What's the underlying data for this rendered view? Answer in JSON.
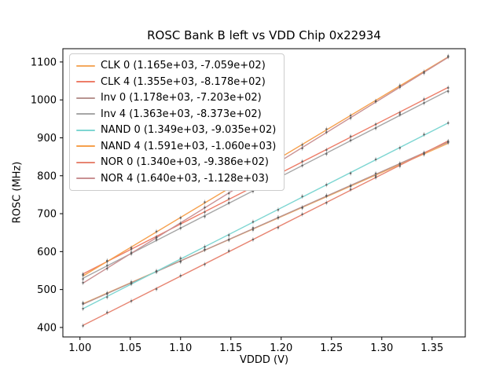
{
  "chart_data": {
    "type": "line",
    "title": "ROSC Bank B left vs VDD Chip 0x22934",
    "xlabel": "VDDD (V)",
    "ylabel": "ROSC (MHz)",
    "xlim": [
      0.983,
      1.383
    ],
    "ylim": [
      375,
      1135
    ],
    "xticks": [
      1.0,
      1.05,
      1.1,
      1.15,
      1.2,
      1.25,
      1.3,
      1.35
    ],
    "xtick_labels": [
      "1.00",
      "1.05",
      "1.10",
      "1.15",
      "1.20",
      "1.25",
      "1.30",
      "1.35"
    ],
    "yticks": [
      400,
      500,
      600,
      700,
      800,
      900,
      1000,
      1100
    ],
    "ytick_labels": [
      "400",
      "500",
      "600",
      "700",
      "800",
      "900",
      "1000",
      "1100"
    ],
    "grid": false,
    "legend_position": "upper left",
    "x_points": [
      1.003,
      1.027,
      1.051,
      1.076,
      1.1,
      1.124,
      1.148,
      1.172,
      1.197,
      1.221,
      1.245,
      1.269,
      1.294,
      1.318,
      1.342,
      1.366
    ],
    "series": [
      {
        "name": "CLK 0",
        "label": "CLK 0 (1.165e+03, -7.059e+02)",
        "slope": 1165,
        "intercept": -705.9,
        "color": "#f4a95e"
      },
      {
        "name": "CLK 4",
        "label": "CLK 4 (1.355e+03, -8.178e+02)",
        "slope": 1355,
        "intercept": -817.8,
        "color": "#ed7d68"
      },
      {
        "name": "Inv 0",
        "label": "Inv 0 (1.178e+03, -7.203e+02)",
        "slope": 1178,
        "intercept": -720.3,
        "color": "#b89490"
      },
      {
        "name": "Inv 4",
        "label": "Inv 4 (1.363e+03, -8.373e+02)",
        "slope": 1363,
        "intercept": -837.3,
        "color": "#a6a6a6"
      },
      {
        "name": "NAND 0",
        "label": "NAND 0 (1.349e+03, -9.035e+02)",
        "slope": 1349,
        "intercept": -903.5,
        "color": "#7ed6d2"
      },
      {
        "name": "NAND 4",
        "label": "NAND 4 (1.591e+03, -1.060e+03)",
        "slope": 1591,
        "intercept": -1060.0,
        "color": "#f6a04d"
      },
      {
        "name": "NOR 0",
        "label": "NOR 0 (1.340e+03, -9.386e+02)",
        "slope": 1340,
        "intercept": -938.6,
        "color": "#e78572"
      },
      {
        "name": "NOR 4",
        "label": "NOR 4 (1.640e+03, -1.128e+03)",
        "slope": 1640,
        "intercept": -1128.0,
        "color": "#c99193"
      }
    ],
    "marker_color": "#5a5a5a"
  }
}
